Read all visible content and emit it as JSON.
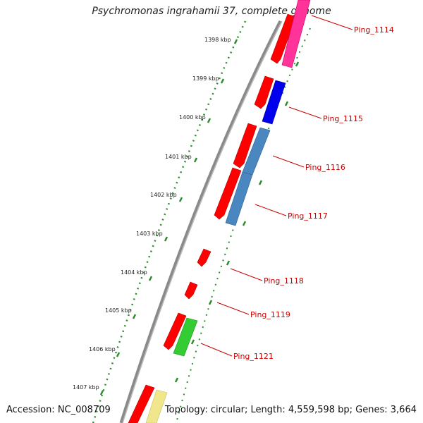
{
  "title": "Psychromonas ingrahamii 37, complete genome",
  "footer": {
    "accession": "Accession: NC_008709",
    "summary": "Topology: circular; Length: 4,559,598 bp; Genes: 3,664"
  },
  "kbp_marks": [
    "1398 kbp",
    "1399 kbp",
    "1400 kbp",
    "1401 kbp",
    "1402 kbp",
    "1403 kbp",
    "1404 kbp",
    "1405 kbp",
    "1406 kbp",
    "1407 kbp"
  ],
  "gene_labels": [
    "Ping_1114",
    "Ping_1115",
    "Ping_1116",
    "Ping_1117",
    "Ping_1118",
    "Ping_1119",
    "Ping_1121"
  ],
  "colors": {
    "backbone": "#8a8a8a",
    "kbp_ticks": "#2e8b2e",
    "cds": "#ff0000",
    "label_text": "#cc0000",
    "gene_magenta": "#ff3399",
    "gene_blue": "#0000ee",
    "gene_steelblue": "#4a86c0",
    "gene_green": "#33cc33",
    "gene_khaki": "#f0e68c"
  }
}
